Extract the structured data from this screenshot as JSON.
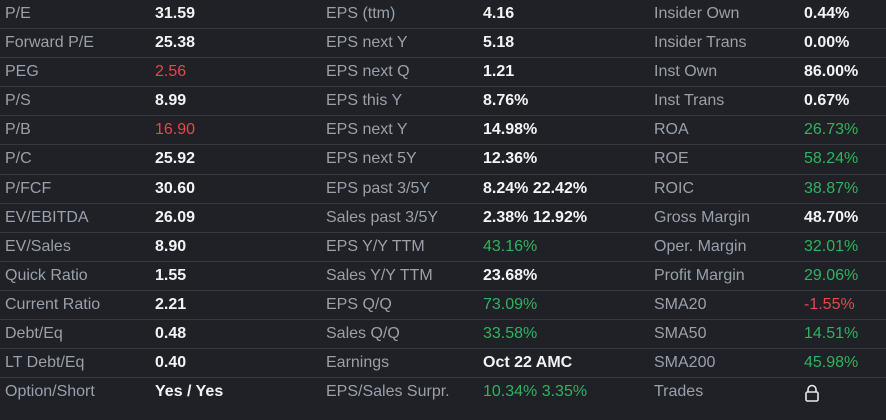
{
  "columns": [
    {
      "rows": [
        {
          "label": "P/E",
          "value": "31.59",
          "tone": "normal"
        },
        {
          "label": "Forward P/E",
          "value": "25.38",
          "tone": "normal"
        },
        {
          "label": "PEG",
          "value": "2.56",
          "tone": "red"
        },
        {
          "label": "P/S",
          "value": "8.99",
          "tone": "normal"
        },
        {
          "label": "P/B",
          "value": "16.90",
          "tone": "red"
        },
        {
          "label": "P/C",
          "value": "25.92",
          "tone": "normal"
        },
        {
          "label": "P/FCF",
          "value": "30.60",
          "tone": "normal"
        },
        {
          "label": "EV/EBITDA",
          "value": "26.09",
          "tone": "normal"
        },
        {
          "label": "EV/Sales",
          "value": "8.90",
          "tone": "normal"
        },
        {
          "label": "Quick Ratio",
          "value": "1.55",
          "tone": "normal"
        },
        {
          "label": "Current Ratio",
          "value": "2.21",
          "tone": "normal"
        },
        {
          "label": "Debt/Eq",
          "value": "0.48",
          "tone": "normal"
        },
        {
          "label": "LT Debt/Eq",
          "value": "0.40",
          "tone": "normal"
        },
        {
          "label": "Option/Short",
          "value": "Yes / Yes",
          "tone": "normal"
        }
      ]
    },
    {
      "rows": [
        {
          "label": "EPS (ttm)",
          "value": "4.16",
          "tone": "normal"
        },
        {
          "label": "EPS next Y",
          "value": "5.18",
          "tone": "normal"
        },
        {
          "label": "EPS next Q",
          "value": "1.21",
          "tone": "normal"
        },
        {
          "label": "EPS this Y",
          "value": "8.76%",
          "tone": "normal"
        },
        {
          "label": "EPS next Y",
          "value": "14.98%",
          "tone": "normal"
        },
        {
          "label": "EPS next 5Y",
          "value": "12.36%",
          "tone": "normal"
        },
        {
          "label": "EPS past 3/5Y",
          "value": "8.24% 22.42%",
          "tone": "normal"
        },
        {
          "label": "Sales past 3/5Y",
          "value": "2.38% 12.92%",
          "tone": "normal"
        },
        {
          "label": "EPS Y/Y TTM",
          "value": "43.16%",
          "tone": "green"
        },
        {
          "label": "Sales Y/Y TTM",
          "value": "23.68%",
          "tone": "normal"
        },
        {
          "label": "EPS Q/Q",
          "value": "73.09%",
          "tone": "green"
        },
        {
          "label": "Sales Q/Q",
          "value": "33.58%",
          "tone": "green"
        },
        {
          "label": "Earnings",
          "value": "Oct 22 AMC",
          "tone": "normal"
        },
        {
          "label": "EPS/Sales Surpr.",
          "value": "10.34% 3.35%",
          "tone": "green"
        }
      ]
    },
    {
      "rows": [
        {
          "label": "Insider Own",
          "value": "0.44%",
          "tone": "normal"
        },
        {
          "label": "Insider Trans",
          "value": "0.00%",
          "tone": "normal"
        },
        {
          "label": "Inst Own",
          "value": "86.00%",
          "tone": "normal"
        },
        {
          "label": "Inst Trans",
          "value": "0.67%",
          "tone": "normal"
        },
        {
          "label": "ROA",
          "value": "26.73%",
          "tone": "green"
        },
        {
          "label": "ROE",
          "value": "58.24%",
          "tone": "green"
        },
        {
          "label": "ROIC",
          "value": "38.87%",
          "tone": "green"
        },
        {
          "label": "Gross Margin",
          "value": "48.70%",
          "tone": "normal"
        },
        {
          "label": "Oper. Margin",
          "value": "32.01%",
          "tone": "green"
        },
        {
          "label": "Profit Margin",
          "value": "29.06%",
          "tone": "green"
        },
        {
          "label": "SMA20",
          "value": "-1.55%",
          "tone": "red"
        },
        {
          "label": "SMA50",
          "value": "14.51%",
          "tone": "green"
        },
        {
          "label": "SMA200",
          "value": "45.98%",
          "tone": "green"
        },
        {
          "label": "Trades",
          "value": "",
          "tone": "lock",
          "icon": "lock-icon"
        }
      ]
    }
  ],
  "colors": {
    "background": "#1f2126",
    "label": "#9aa0ab",
    "value": "#f2f3f5",
    "red": "#e5484d",
    "green": "#2fb35f",
    "divider": "#353942"
  }
}
